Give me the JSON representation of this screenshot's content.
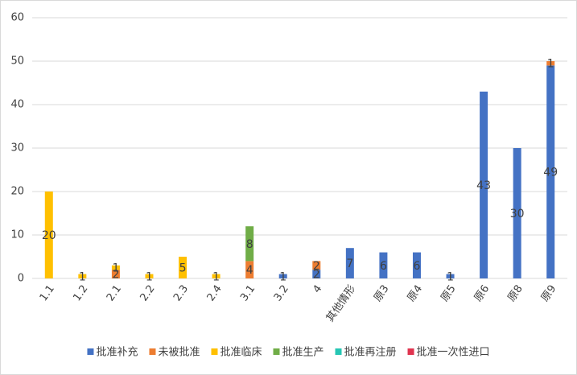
{
  "chart_data": {
    "type": "stacked_bar",
    "categories": [
      "1.1",
      "1.2",
      "2.1",
      "2.2",
      "2.3",
      "2.4",
      "3.1",
      "3.2",
      "4",
      "其他情形",
      "原3",
      "原4",
      "原5",
      "原6",
      "原8",
      "原9"
    ],
    "series": [
      {
        "name": "批准补充",
        "color": "#4472c4",
        "values": [
          null,
          null,
          null,
          null,
          null,
          null,
          null,
          1,
          2,
          7,
          6,
          6,
          1,
          43,
          30,
          49
        ]
      },
      {
        "name": "未被批准",
        "color": "#ed7d31",
        "values": [
          null,
          null,
          2,
          null,
          null,
          null,
          4,
          null,
          2,
          null,
          null,
          null,
          null,
          null,
          null,
          1
        ]
      },
      {
        "name": "批准临床",
        "color": "#ffc000",
        "values": [
          20,
          1,
          1,
          1,
          5,
          1,
          null,
          null,
          null,
          null,
          null,
          null,
          null,
          null,
          null,
          null
        ]
      },
      {
        "name": "批准生产",
        "color": "#70ad47",
        "values": [
          null,
          null,
          null,
          null,
          null,
          null,
          8,
          null,
          null,
          null,
          null,
          null,
          null,
          null,
          null,
          null
        ]
      },
      {
        "name": "批准再注册",
        "color": "#26c6b4",
        "values": [
          null,
          null,
          null,
          null,
          null,
          null,
          null,
          null,
          null,
          null,
          null,
          null,
          null,
          null,
          null,
          null
        ]
      },
      {
        "name": "批准一次性进口",
        "color": "#e0344f",
        "values": [
          null,
          null,
          null,
          null,
          null,
          null,
          null,
          null,
          null,
          null,
          null,
          null,
          null,
          null,
          null,
          null
        ]
      }
    ],
    "ylim": [
      0,
      60
    ],
    "yticks": [
      0,
      10,
      20,
      30,
      40,
      50,
      60
    ],
    "grid": true,
    "legend": "bottom"
  }
}
